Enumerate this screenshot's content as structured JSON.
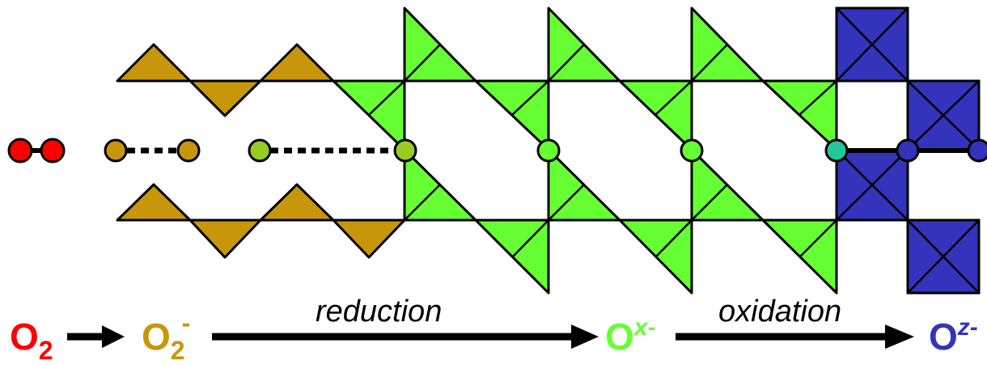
{
  "colors": {
    "o2": "#ff0000",
    "superoxide": "#c8960a",
    "intermediate": "#66ff33",
    "transition": "#1fc896",
    "final": "#3333bb",
    "outline": "#000000"
  },
  "scheme": {
    "o2": {
      "base": "O",
      "sub": "2"
    },
    "superoxide": {
      "base": "O",
      "sub": "2",
      "sup": "-"
    },
    "intermediate": {
      "base": "O",
      "sup": "x-"
    },
    "final": {
      "base": "O",
      "sup": "z-"
    },
    "reduction_label": "reduction",
    "oxidation_label": "oxidation"
  }
}
